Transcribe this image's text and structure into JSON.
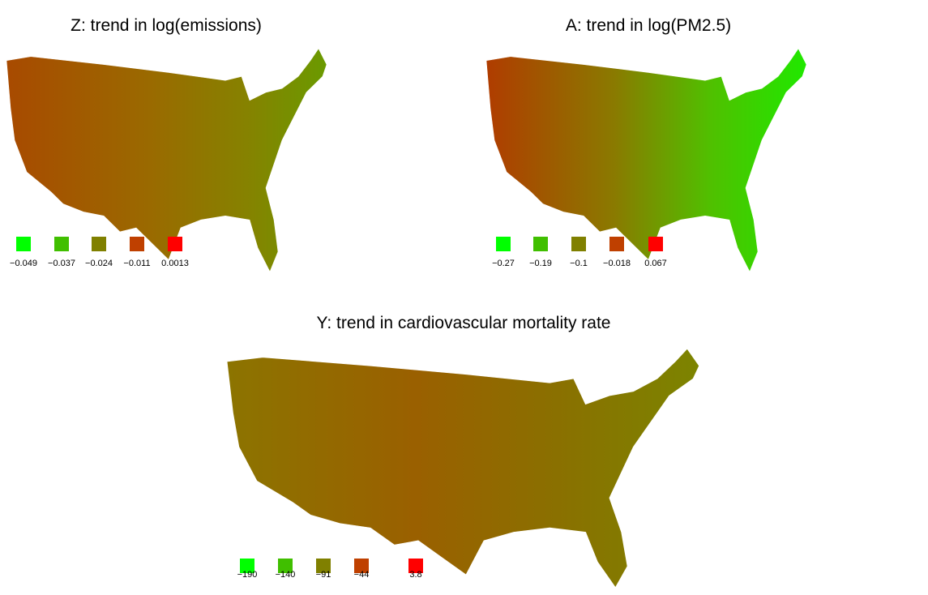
{
  "panels": [
    {
      "title": "Z: trend in log(emissions)",
      "legend": [
        {
          "label": "−0.049",
          "color": "#00ff00"
        },
        {
          "label": "−0.037",
          "color": "#40bf00"
        },
        {
          "label": "−0.024",
          "color": "#808000"
        },
        {
          "label": "−0.011",
          "color": "#bf4000"
        },
        {
          "label": "0.0013",
          "color": "#ff0000"
        }
      ]
    },
    {
      "title": "A: trend in log(PM2.5)",
      "legend": [
        {
          "label": "−0.27",
          "color": "#00ff00"
        },
        {
          "label": "−0.19",
          "color": "#40bf00"
        },
        {
          "label": "−0.1",
          "color": "#808000"
        },
        {
          "label": "−0.018",
          "color": "#bf4000"
        },
        {
          "label": "0.067",
          "color": "#ff0000"
        }
      ]
    },
    {
      "title": "Y: trend in cardiovascular mortality rate",
      "legend": [
        {
          "label": "−190",
          "color": "#00ff00"
        },
        {
          "label": "−140",
          "color": "#40bf00"
        },
        {
          "label": "−91",
          "color": "#808000"
        },
        {
          "label": "−44",
          "color": "#bf4000"
        },
        {
          "label": "3.8",
          "color": "#ff0000"
        }
      ]
    }
  ]
}
